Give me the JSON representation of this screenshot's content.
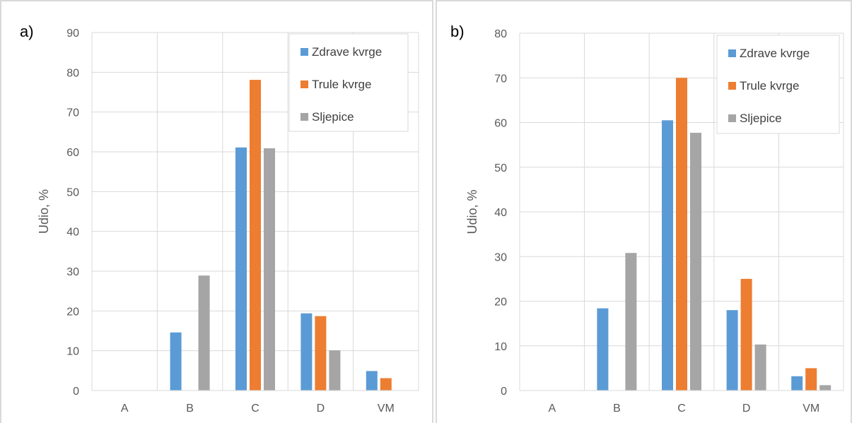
{
  "panels": [
    {
      "label": "a)",
      "chart_data": {
        "type": "bar",
        "categories": [
          "A",
          "B",
          "C",
          "D",
          "VM"
        ],
        "series": [
          {
            "name": "Zdrave kvrge",
            "color": "#5b9bd5",
            "values": [
              0,
              14.6,
              61.1,
              19.4,
              4.9
            ]
          },
          {
            "name": "Trule kvrge",
            "color": "#ed7d31",
            "values": [
              0,
              0,
              78.1,
              18.7,
              3.1
            ]
          },
          {
            "name": "Sljepice",
            "color": "#a5a5a5",
            "values": [
              0,
              28.9,
              60.9,
              10.1,
              0
            ]
          }
        ],
        "ylabel": "Udio, %",
        "ylim": [
          0,
          90
        ],
        "yticks": [
          0,
          10,
          20,
          30,
          40,
          50,
          60,
          70,
          80,
          90
        ],
        "grid": true,
        "legend_position": "top-right"
      }
    },
    {
      "label": "b)",
      "chart_data": {
        "type": "bar",
        "categories": [
          "A",
          "B",
          "C",
          "D",
          "VM"
        ],
        "series": [
          {
            "name": "Zdrave kvrge",
            "color": "#5b9bd5",
            "values": [
              0,
              18.4,
              60.5,
              18.0,
              3.2
            ]
          },
          {
            "name": "Trule kvrge",
            "color": "#ed7d31",
            "values": [
              0,
              0,
              70.0,
              25.0,
              5.0
            ]
          },
          {
            "name": "Sljepice",
            "color": "#a5a5a5",
            "values": [
              0,
              30.8,
              57.7,
              10.3,
              1.2
            ]
          }
        ],
        "ylabel": "Udio, %",
        "ylim": [
          0,
          80
        ],
        "yticks": [
          0,
          10,
          20,
          30,
          40,
          50,
          60,
          70,
          80
        ],
        "grid": true,
        "legend_position": "top-right"
      }
    }
  ]
}
